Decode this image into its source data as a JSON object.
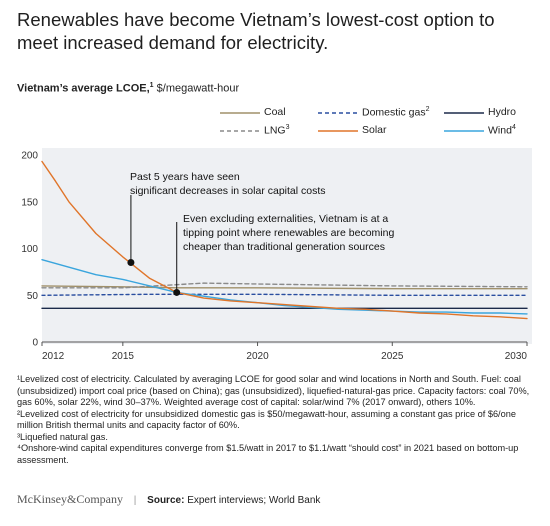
{
  "headline": "Renewables have become Vietnam’s lowest-cost option to meet increased demand for electricity.",
  "subtitle": {
    "bold": "Vietnam’s average LCOE,",
    "sup": "1",
    "unit": "$/megawatt-hour"
  },
  "colors": {
    "coal": "#a0906a",
    "domestic_gas": "#2a4ea0",
    "hydro": "#1b2a4a",
    "lng": "#8a8a8a",
    "solar": "#e0752a",
    "wind": "#3aa5dd",
    "plot_bg": "#eef0f3",
    "axis": "#555555"
  },
  "chart_data": {
    "type": "line",
    "xlim": [
      2012,
      2030
    ],
    "ylim": [
      0,
      200
    ],
    "x_ticks": [
      "2012",
      "2015",
      "2020",
      "2025",
      "2030"
    ],
    "y_ticks": [
      "0",
      "50",
      "100",
      "150",
      "200"
    ],
    "series": [
      {
        "key": "coal",
        "name": "Coal",
        "sup": "",
        "style": "solid",
        "x": [
          2012,
          2015,
          2017,
          2020,
          2025,
          2030
        ],
        "y": [
          60,
          59,
          58,
          58,
          57,
          57
        ]
      },
      {
        "key": "domestic_gas",
        "name": "Domestic gas",
        "sup": "2",
        "style": "dashed",
        "x": [
          2012,
          2016,
          2020,
          2025,
          2030
        ],
        "y": [
          50,
          51,
          51,
          50,
          50
        ]
      },
      {
        "key": "hydro",
        "name": "Hydro",
        "sup": "",
        "style": "solid",
        "x": [
          2012,
          2020,
          2030
        ],
        "y": [
          36,
          36,
          36
        ]
      },
      {
        "key": "lng",
        "name": "LNG",
        "sup": "3",
        "style": "dashed",
        "x": [
          2012,
          2015,
          2018,
          2020,
          2025,
          2030
        ],
        "y": [
          58,
          58,
          63,
          62,
          60,
          59
        ]
      },
      {
        "key": "solar",
        "name": "Solar",
        "sup": "",
        "style": "solid",
        "x": [
          2012,
          2012.5,
          2013,
          2014,
          2015,
          2016,
          2017,
          2018,
          2019,
          2020,
          2021,
          2022,
          2023,
          2024,
          2025,
          2026,
          2027,
          2028,
          2029,
          2030
        ],
        "y": [
          193,
          172,
          150,
          116,
          91,
          68,
          53,
          47,
          44,
          42,
          40,
          38,
          36,
          35,
          33,
          31,
          30,
          28,
          27,
          25
        ]
      },
      {
        "key": "wind",
        "name": "Wind",
        "sup": "4",
        "style": "solid",
        "x": [
          2012,
          2013,
          2014,
          2015,
          2016,
          2017,
          2018,
          2019,
          2020,
          2021,
          2022,
          2023,
          2024,
          2025,
          2026,
          2027,
          2028,
          2029,
          2030
        ],
        "y": [
          88,
          80,
          72,
          67,
          60,
          53,
          49,
          45,
          42,
          39,
          37,
          35,
          34,
          33,
          32,
          32,
          31,
          31,
          30
        ]
      }
    ],
    "annotations": [
      {
        "text": "Past 5 years have seen significant decreases in solar capital costs",
        "point": [
          2015.3,
          85
        ]
      },
      {
        "text": "Even excluding externalities, Vietnam is at a tipping point where renewables are becoming cheaper than traditional generation sources",
        "point": [
          2017,
          53
        ]
      }
    ]
  },
  "legend": [
    {
      "key": "coal",
      "name": "Coal",
      "sup": ""
    },
    {
      "key": "domestic_gas",
      "name": "Domestic gas",
      "sup": "2"
    },
    {
      "key": "hydro",
      "name": "Hydro",
      "sup": ""
    },
    {
      "key": "lng",
      "name": "LNG",
      "sup": "3"
    },
    {
      "key": "solar",
      "name": "Solar",
      "sup": ""
    },
    {
      "key": "wind",
      "name": "Wind",
      "sup": "4"
    }
  ],
  "footnotes": [
    "¹Levelized cost of electricity. Calculated by averaging LCOE for good solar and wind locations in North and South. Fuel: coal (unsubsidized) import coal price (based on China); gas (unsubsidized), liquefied-natural-gas price. Capacity factors: coal 70%, gas 60%, solar 22%, wind 30–37%. Weighted average cost of capital: solar/wind 7% (2017 onward), others 10%.",
    "²Levelized cost of electricity for unsubsidized domestic gas is $50/megawatt-hour, assuming a constant gas price of $6/one million British thermal units and capacity factor of 60%.",
    "³Liquefied natural gas.",
    "⁴Onshore-wind capital expenditures converge from $1.5/watt in 2017 to $1.1/watt “should cost” in 2021 based on bottom-up assessment."
  ],
  "footer": {
    "brand": "McKinsey&Company",
    "source_label": "Source:",
    "source_text": "Expert interviews; World Bank"
  }
}
